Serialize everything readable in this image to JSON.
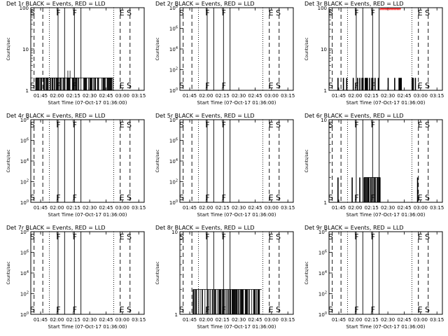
{
  "figure": {
    "xlabel": "Start Time (07-Oct-17 01:36:00)",
    "ylabel": "Counts/sec",
    "x_ticks": [
      "01:45",
      "02:00",
      "02:15",
      "02:30",
      "02:45",
      "03:00",
      "03:15"
    ],
    "x_tick_minutes": [
      105,
      120,
      135,
      150,
      165,
      180,
      195
    ],
    "x_range_minutes": [
      96,
      200
    ],
    "colors": {
      "events": "#000000",
      "lld": "#ff0000",
      "axes": "#000000"
    }
  },
  "chart_data": [
    {
      "type": "line",
      "title": "Det 1r BLACK = Events, RED = LLD",
      "yscale": "log",
      "ylim": [
        1,
        100
      ],
      "y_ticks": [
        {
          "v": 1,
          "label": "1"
        },
        {
          "v": 10,
          "label": "10"
        },
        {
          "v": 100,
          "label": "100"
        }
      ],
      "dashed_lines": [
        99,
        107,
        178,
        187
      ],
      "dotted_lines": [
        113,
        172
      ],
      "solid_lines": [
        121,
        127,
        136,
        142
      ],
      "markers": [
        {
          "t": 97.5,
          "label": "S"
        },
        {
          "t": 121.3,
          "label": "F"
        },
        {
          "t": 136.3,
          "label": "F"
        },
        {
          "t": 179.5,
          "label": "E"
        },
        {
          "t": 186.2,
          "label": "S"
        }
      ],
      "events": {
        "start": 100.5,
        "end": 171.5,
        "value": 2,
        "peaks": [
          {
            "t": 130,
            "v": 3
          },
          {
            "t": 132,
            "v": 3
          }
        ]
      },
      "lld": null
    },
    {
      "type": "line",
      "title": "Det 2r BLACK = Events, RED = LLD",
      "yscale": "log",
      "ylim": [
        1,
        100000000
      ],
      "y_ticks": [
        {
          "v": 1,
          "label": "10^0"
        },
        {
          "v": 100,
          "label": "10^2"
        },
        {
          "v": 10000,
          "label": "10^4"
        },
        {
          "v": 1000000,
          "label": "10^6"
        },
        {
          "v": 100000000,
          "label": "10^8"
        }
      ],
      "dashed_lines": [
        99,
        107,
        178,
        187
      ],
      "dotted_lines": [
        113,
        172
      ],
      "solid_lines": [
        121,
        127,
        136,
        142
      ],
      "markers": [
        {
          "t": 97.5,
          "label": "S"
        },
        {
          "t": 121.3,
          "label": "F"
        },
        {
          "t": 136.3,
          "label": "F"
        },
        {
          "t": 179.5,
          "label": "E"
        },
        {
          "t": 186.2,
          "label": "S"
        }
      ],
      "events": null,
      "lld": null
    },
    {
      "type": "line",
      "title": "Det 3r BLACK = Events, RED = LLD",
      "yscale": "log",
      "ylim": [
        1,
        100
      ],
      "y_ticks": [
        {
          "v": 1,
          "label": "1"
        },
        {
          "v": 10,
          "label": "10"
        },
        {
          "v": 100,
          "label": "100"
        }
      ],
      "dashed_lines": [
        99,
        107,
        178,
        187
      ],
      "dotted_lines": [
        113,
        172
      ],
      "solid_lines": [
        121,
        127,
        136,
        142
      ],
      "markers": [
        {
          "t": 97.5,
          "label": "S"
        },
        {
          "t": 121.3,
          "label": "F"
        },
        {
          "t": 136.3,
          "label": "F"
        },
        {
          "t": 179.5,
          "label": "E"
        },
        {
          "t": 186.2,
          "label": "S"
        }
      ],
      "events": {
        "sparse": [
          104,
          109,
          112,
          118,
          122,
          124,
          126,
          127,
          129,
          130,
          131,
          133,
          135,
          136,
          138,
          141,
          150,
          156,
          160,
          161,
          162,
          172,
          173,
          175
        ],
        "value": 2,
        "peaks": []
      },
      "lld": {
        "start": 143,
        "end": 162,
        "value": 95
      }
    },
    {
      "type": "line",
      "title": "Det 4r BLACK = Events, RED = LLD",
      "yscale": "log",
      "ylim": [
        1,
        100000000
      ],
      "y_ticks": [
        {
          "v": 1,
          "label": "10^0"
        },
        {
          "v": 100,
          "label": "10^2"
        },
        {
          "v": 10000,
          "label": "10^4"
        },
        {
          "v": 1000000,
          "label": "10^6"
        },
        {
          "v": 100000000,
          "label": "10^8"
        }
      ],
      "dashed_lines": [
        99,
        107,
        178,
        187
      ],
      "dotted_lines": [
        113,
        172
      ],
      "solid_lines": [
        121,
        127,
        136,
        142
      ],
      "markers": [
        {
          "t": 97.5,
          "label": "S"
        },
        {
          "t": 121.3,
          "label": "F"
        },
        {
          "t": 136.3,
          "label": "F"
        },
        {
          "t": 179.5,
          "label": "E"
        },
        {
          "t": 186.2,
          "label": "S"
        }
      ],
      "events": null,
      "lld": null
    },
    {
      "type": "line",
      "title": "Det 5r BLACK = Events, RED = LLD",
      "yscale": "log",
      "ylim": [
        1,
        100000000
      ],
      "y_ticks": [
        {
          "v": 1,
          "label": "10^0"
        },
        {
          "v": 100,
          "label": "10^2"
        },
        {
          "v": 10000,
          "label": "10^4"
        },
        {
          "v": 1000000,
          "label": "10^6"
        },
        {
          "v": 100000000,
          "label": "10^8"
        }
      ],
      "dashed_lines": [
        99,
        107,
        178,
        187
      ],
      "dotted_lines": [
        113,
        172
      ],
      "solid_lines": [
        121,
        127,
        136,
        142
      ],
      "markers": [
        {
          "t": 97.5,
          "label": "S"
        },
        {
          "t": 121.3,
          "label": "F"
        },
        {
          "t": 136.3,
          "label": "F"
        },
        {
          "t": 179.5,
          "label": "E"
        },
        {
          "t": 186.2,
          "label": "S"
        }
      ],
      "events": null,
      "lld": null
    },
    {
      "type": "line",
      "title": "Det 6r BLACK = Events, RED = LLD",
      "yscale": "log",
      "ylim": [
        1,
        10
      ],
      "y_ticks": [
        {
          "v": 1,
          "label": "1"
        },
        {
          "v": 10,
          "label": "10"
        }
      ],
      "dashed_lines": [
        99,
        107,
        178,
        187
      ],
      "dotted_lines": [
        113,
        172
      ],
      "solid_lines": [
        121,
        127,
        136,
        142
      ],
      "markers": [
        {
          "t": 97.5,
          "label": "S"
        },
        {
          "t": 121.3,
          "label": "F"
        },
        {
          "t": 136.3,
          "label": "F"
        },
        {
          "t": 179.5,
          "label": "E"
        },
        {
          "t": 186.2,
          "label": "S"
        }
      ],
      "events": {
        "sparse": [
          104,
          117,
          124,
          128,
          132,
          134,
          140,
          142,
          177
        ],
        "value": 2,
        "block_start": 128,
        "block_end": 143
      },
      "lld": null
    },
    {
      "type": "line",
      "title": "Det 7r BLACK = Events, RED = LLD",
      "yscale": "log",
      "ylim": [
        1,
        100000000
      ],
      "y_ticks": [
        {
          "v": 1,
          "label": "10^0"
        },
        {
          "v": 100,
          "label": "10^2"
        },
        {
          "v": 10000,
          "label": "10^4"
        },
        {
          "v": 1000000,
          "label": "10^6"
        },
        {
          "v": 100000000,
          "label": "10^8"
        }
      ],
      "dashed_lines": [
        99,
        107,
        178,
        187
      ],
      "dotted_lines": [
        113,
        172
      ],
      "solid_lines": [
        121,
        127,
        136,
        142
      ],
      "markers": [
        {
          "t": 97.5,
          "label": "S"
        },
        {
          "t": 121.3,
          "label": "F"
        },
        {
          "t": 136.3,
          "label": "F"
        },
        {
          "t": 179.5,
          "label": "E"
        },
        {
          "t": 186.2,
          "label": "S"
        }
      ],
      "events": null,
      "lld": null
    },
    {
      "type": "line",
      "title": "Det 8r BLACK = Events, RED = LLD",
      "yscale": "log",
      "ylim": [
        1,
        10
      ],
      "y_ticks": [
        {
          "v": 1,
          "label": "1"
        },
        {
          "v": 10,
          "label": "10"
        }
      ],
      "dashed_lines": [
        99,
        107,
        178,
        187
      ],
      "dotted_lines": [
        113,
        172
      ],
      "solid_lines": [
        121,
        127,
        136,
        142
      ],
      "markers": [
        {
          "t": 97.5,
          "label": "S"
        },
        {
          "t": 121.3,
          "label": "F"
        },
        {
          "t": 136.3,
          "label": "F"
        },
        {
          "t": 179.5,
          "label": "E"
        },
        {
          "t": 186.2,
          "label": "S"
        }
      ],
      "events": {
        "start": 108,
        "end": 171,
        "value": 2,
        "peaks": []
      },
      "lld": null
    },
    {
      "type": "line",
      "title": "Det 9r BLACK = Events, RED = LLD",
      "yscale": "log",
      "ylim": [
        1,
        100000000
      ],
      "y_ticks": [
        {
          "v": 1,
          "label": "10^0"
        },
        {
          "v": 100,
          "label": "10^2"
        },
        {
          "v": 10000,
          "label": "10^4"
        },
        {
          "v": 1000000,
          "label": "10^6"
        },
        {
          "v": 100000000,
          "label": "10^8"
        }
      ],
      "dashed_lines": [
        99,
        107,
        178,
        187
      ],
      "dotted_lines": [
        113,
        172
      ],
      "solid_lines": [
        121,
        127,
        136,
        142
      ],
      "markers": [
        {
          "t": 97.5,
          "label": "S"
        },
        {
          "t": 121.3,
          "label": "F"
        },
        {
          "t": 136.3,
          "label": "F"
        },
        {
          "t": 179.5,
          "label": "E"
        },
        {
          "t": 186.2,
          "label": "S"
        }
      ],
      "events": null,
      "lld": null
    }
  ]
}
